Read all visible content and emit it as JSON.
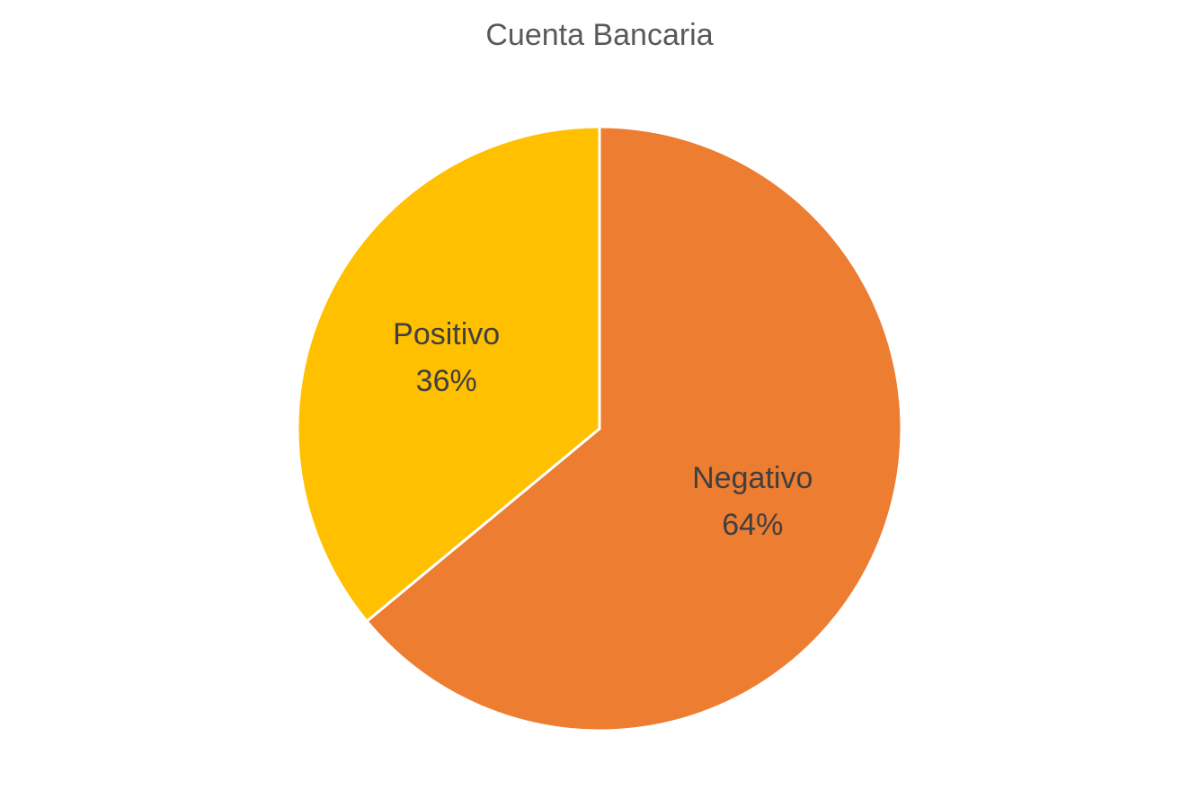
{
  "chart_data": {
    "type": "pie",
    "title": "Cuenta Bancaria",
    "slices": [
      {
        "label": "Negativo",
        "value": 64,
        "percent_label": "64%",
        "color": "#ED7D31"
      },
      {
        "label": "Positivo",
        "value": 36,
        "percent_label": "36%",
        "color": "#FFC000"
      }
    ],
    "start_angle_deg": 0,
    "direction": "clockwise",
    "legend": "none",
    "data_labels": "inside"
  }
}
